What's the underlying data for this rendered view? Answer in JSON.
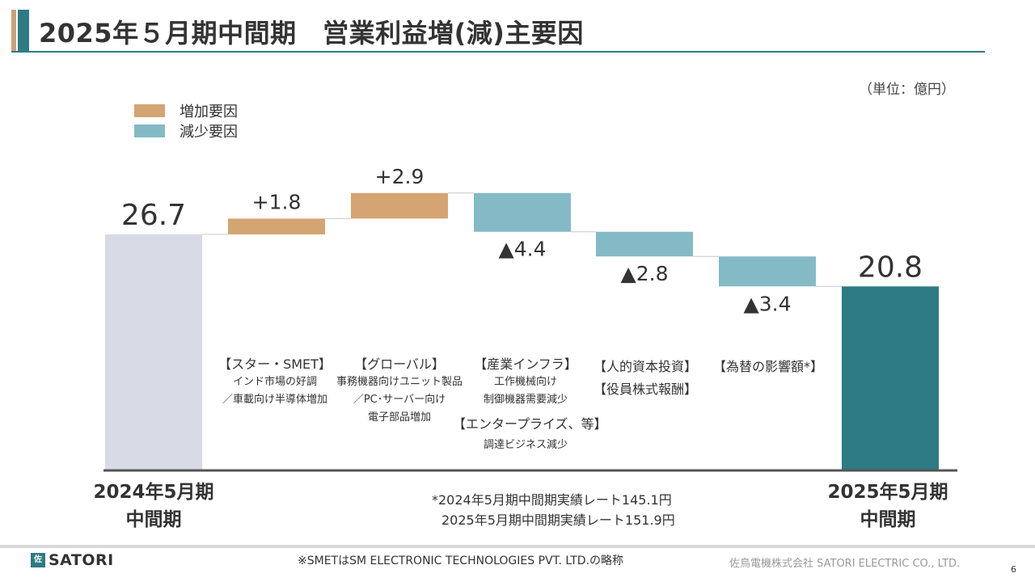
{
  "title": "2025年５月期中間期　営業利益増(減)主要因",
  "unit": "（単位：億円）",
  "legend": {
    "increase": {
      "label": "増加要因",
      "color": "#d4a472"
    },
    "decrease": {
      "label": "減少要因",
      "color": "#84bac6"
    }
  },
  "colors": {
    "start": "#d8dae5",
    "end": "#2e7b84",
    "increase": "#d4a472",
    "decrease": "#84bac6",
    "axis": "#555555",
    "connector": "#c8c8c8"
  },
  "chart_data": {
    "type": "waterfall",
    "title": "2025年５月期中間期　営業利益増(減)主要因",
    "units": "億円",
    "categories": [
      "2024年5月期中間期",
      "スター・SMET",
      "グローバル",
      "産業インフラ／エンタープライズ、等",
      "人的資本投資／役員株式報酬",
      "為替の影響額",
      "2025年5月期中間期"
    ],
    "steps": [
      {
        "kind": "start",
        "value": 26.7,
        "label": "26.7"
      },
      {
        "kind": "increase",
        "value": 1.8,
        "label": "+1.8"
      },
      {
        "kind": "increase",
        "value": 2.9,
        "label": "+2.9"
      },
      {
        "kind": "decrease",
        "value": -4.4,
        "label": "▲4.4"
      },
      {
        "kind": "decrease",
        "value": -2.8,
        "label": "▲2.8"
      },
      {
        "kind": "decrease",
        "value": -3.4,
        "label": "▲3.4"
      },
      {
        "kind": "end",
        "value": 20.8,
        "label": "20.8"
      }
    ]
  },
  "captions": [
    {
      "head": "【スター・SMET】",
      "lines": [
        "インド市場の好調",
        "／車載向け半導体増加"
      ]
    },
    {
      "head": "【グローバル】",
      "lines": [
        "事務機器向けユニット製品",
        "／PC･サーバー向け",
        "電子部品増加"
      ]
    },
    {
      "head": "【産業インフラ】",
      "lines": [
        "工作機械向け",
        "制御機器需要減少"
      ],
      "head2": "【エンタープライズ、等】",
      "lines2": [
        "調達ビジネス減少"
      ]
    },
    {
      "head": "【人的資本投資】",
      "head_b": "【役員株式報酬】"
    },
    {
      "head": "【為替の影響額*】"
    }
  ],
  "x_start": {
    "line1": "2024年5月期",
    "line2": "中間期"
  },
  "x_end": {
    "line1": "2025年5月期",
    "line2": "中間期"
  },
  "rate_note": {
    "line1": "*2024年5月期中間期実績レート145.1円",
    "line2": "2025年5月期中間期実績レート151.9円"
  },
  "footnote": "※SMETはSM ELECTRONIC TECHNOLOGIES PVT. LTD.の略称",
  "logo": {
    "mark": "佐",
    "text": "SATORI"
  },
  "company": "佐鳥電機株式会社  SATORI ELECTRIC CO., LTD.",
  "page_number": "6"
}
